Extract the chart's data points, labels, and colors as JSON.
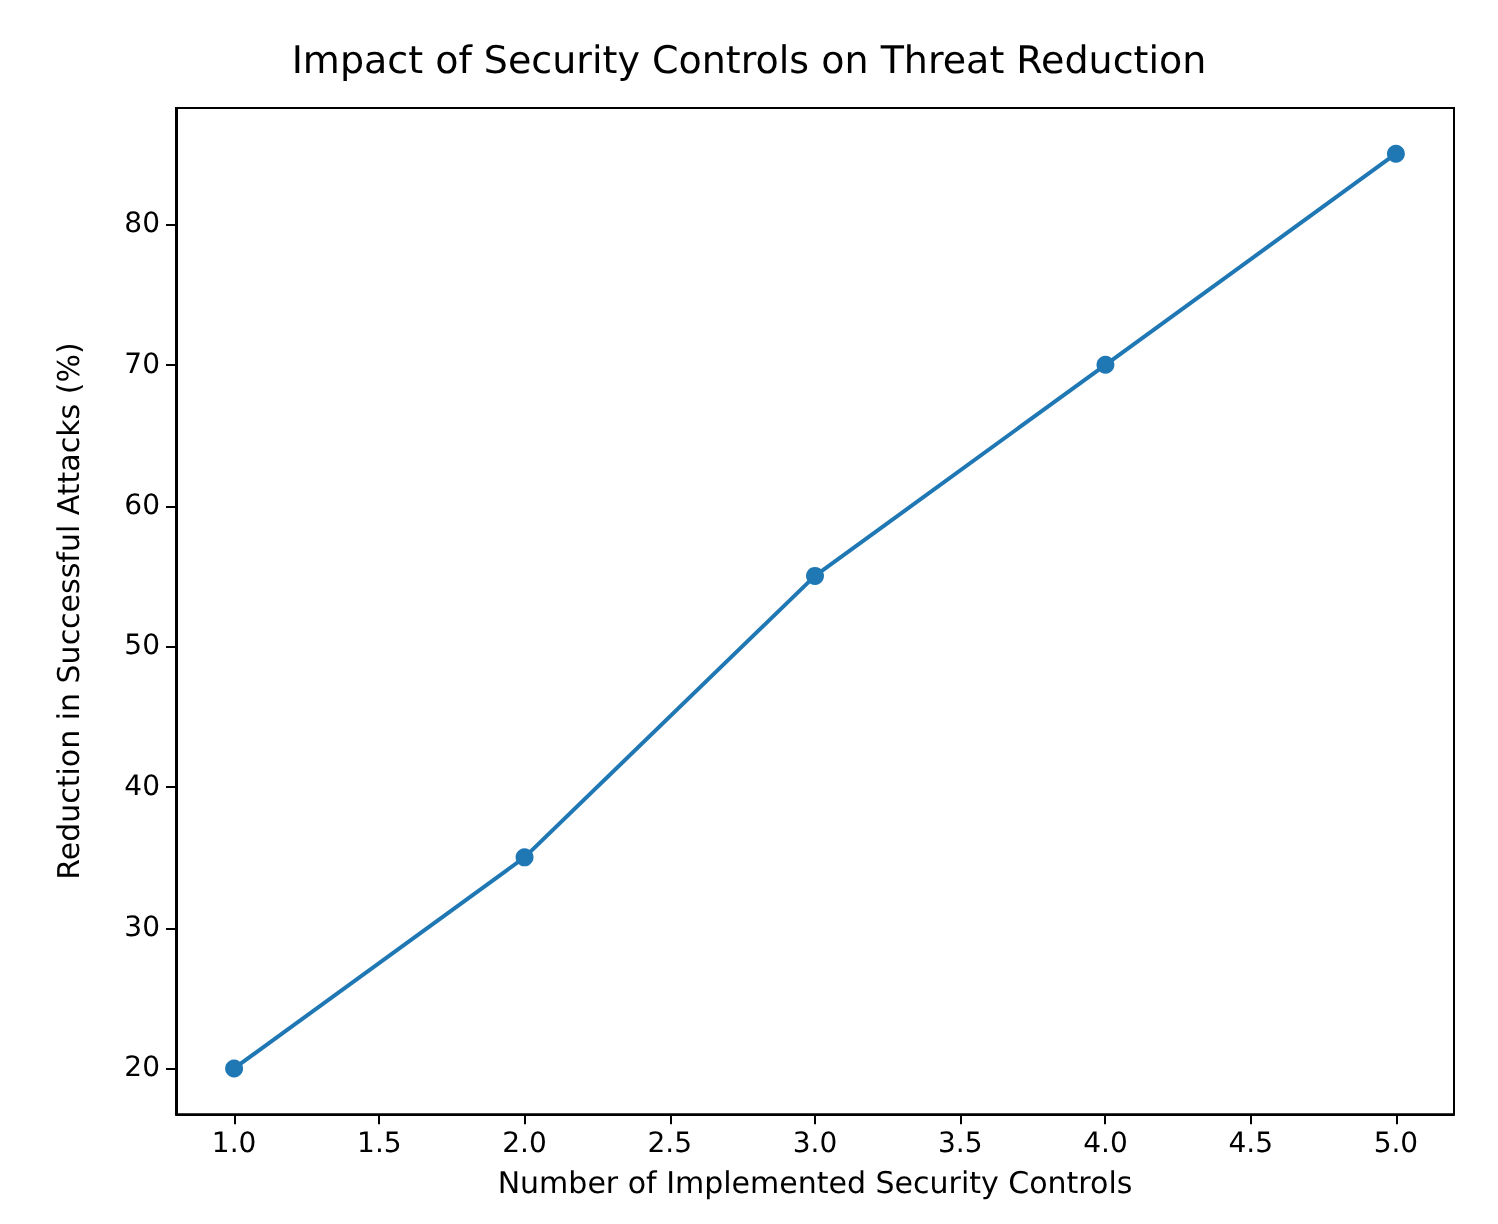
{
  "chart_data": {
    "type": "line",
    "title": "Impact of Security Controls on Threat Reduction",
    "xlabel": "Number of Implemented Security Controls",
    "ylabel": "Reduction in Successful Attacks (%)",
    "x": [
      1,
      2,
      3,
      4,
      5
    ],
    "series": [
      {
        "color": "#1f77b4",
        "values": [
          20,
          35,
          55,
          70,
          85
        ]
      }
    ],
    "xlim": [
      0.8,
      5.2
    ],
    "xticks": [
      {
        "value": 1,
        "label": "1.0"
      },
      {
        "value": 1.5,
        "label": "1.5"
      },
      {
        "value": 2,
        "label": "2.0"
      },
      {
        "value": 2.5,
        "label": "2.5"
      },
      {
        "value": 3,
        "label": "3.0"
      },
      {
        "value": 3.5,
        "label": "3.5"
      },
      {
        "value": 4,
        "label": "4.0"
      },
      {
        "value": 4.5,
        "label": "4.5"
      },
      {
        "value": 5,
        "label": "5.0"
      }
    ],
    "ylim": [
      16.75,
      88.25
    ],
    "yticks": [
      20,
      30,
      40,
      50,
      60,
      70,
      80
    ],
    "grid": false,
    "marker": "circle",
    "line_style": "solid"
  }
}
